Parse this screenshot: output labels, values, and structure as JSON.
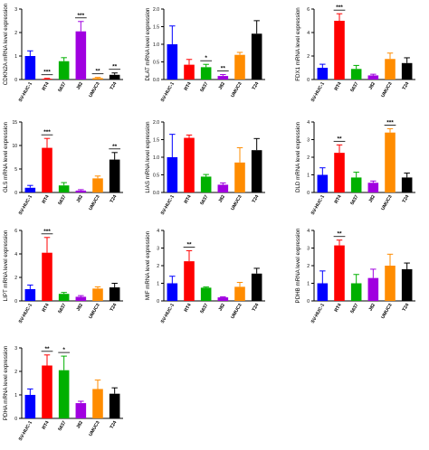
{
  "chart_data": [
    {
      "type": "bar",
      "ylabel": "CDKN2A mRNA level expression",
      "categories": [
        "SV-HUC-1",
        "RT4",
        "5637",
        "J82",
        "UMUC3",
        "T24"
      ],
      "colors": [
        "#0000ff",
        "#ff0000",
        "#00b000",
        "#a000e0",
        "#ff8c00",
        "#000000"
      ],
      "ylim": [
        0,
        3
      ],
      "yticks": [
        "0",
        "1",
        "2",
        "3"
      ],
      "values": [
        1.0,
        0.03,
        0.78,
        2.05,
        0.06,
        0.2
      ],
      "errors": [
        0.22,
        0.02,
        0.15,
        0.42,
        0.03,
        0.08
      ],
      "significance": [
        "",
        "***",
        "",
        "***",
        "**",
        "**"
      ]
    },
    {
      "type": "bar",
      "ylabel": "DLAT mRNA level expression",
      "categories": [
        "SV-HUC-1",
        "RT4",
        "5637",
        "J82",
        "UMUC3",
        "T24"
      ],
      "colors": [
        "#0000ff",
        "#ff0000",
        "#00b000",
        "#a000e0",
        "#ff8c00",
        "#000000"
      ],
      "ylim": [
        0,
        2.0
      ],
      "yticks": [
        "0.0",
        "0.5",
        "1.0",
        "1.5",
        "2.0"
      ],
      "values": [
        1.0,
        0.42,
        0.35,
        0.1,
        0.7,
        1.3
      ],
      "errors": [
        0.52,
        0.15,
        0.08,
        0.04,
        0.07,
        0.37
      ],
      "significance": [
        "",
        "",
        "*",
        "**",
        "",
        ""
      ]
    },
    {
      "type": "bar",
      "ylabel": "FDX1 mRNA level expression",
      "categories": [
        "SV-HUC-1",
        "RT4",
        "5637",
        "J82",
        "UMUC3",
        "T24"
      ],
      "colors": [
        "#0000ff",
        "#ff0000",
        "#00b000",
        "#a000e0",
        "#ff8c00",
        "#000000"
      ],
      "ylim": [
        0,
        6
      ],
      "yticks": [
        "0",
        "2",
        "4",
        "6"
      ],
      "values": [
        1.0,
        5.0,
        0.9,
        0.35,
        1.75,
        1.4
      ],
      "errors": [
        0.3,
        0.6,
        0.3,
        0.1,
        0.5,
        0.45
      ],
      "significance": [
        "",
        "***",
        "",
        "",
        "",
        ""
      ]
    },
    {
      "type": "bar",
      "ylabel": "GLS mRNA level expression",
      "categories": [
        "SV-HUC-1",
        "RT4",
        "5637",
        "J82",
        "UMUC3",
        "T24"
      ],
      "colors": [
        "#0000ff",
        "#ff0000",
        "#00b000",
        "#a000e0",
        "#ff8c00",
        "#000000"
      ],
      "ylim": [
        0,
        15
      ],
      "yticks": [
        "0",
        "5",
        "10",
        "15"
      ],
      "values": [
        1.0,
        9.5,
        1.5,
        0.4,
        3.0,
        7.0
      ],
      "errors": [
        0.5,
        2.0,
        0.6,
        0.2,
        0.5,
        1.5
      ],
      "significance": [
        "",
        "***",
        "",
        "",
        "",
        "**"
      ]
    },
    {
      "type": "bar",
      "ylabel": "LIAS mRNA level expression",
      "categories": [
        "SV-HUC-1",
        "RT4",
        "5637",
        "J82",
        "UMUC3",
        "T24"
      ],
      "colors": [
        "#0000ff",
        "#ff0000",
        "#00b000",
        "#a000e0",
        "#ff8c00",
        "#000000"
      ],
      "ylim": [
        0,
        2.0
      ],
      "yticks": [
        "0.0",
        "0.5",
        "1.0",
        "1.5",
        "2.0"
      ],
      "values": [
        1.0,
        1.55,
        0.45,
        0.22,
        0.85,
        1.2
      ],
      "errors": [
        0.65,
        0.08,
        0.06,
        0.05,
        0.42,
        0.33
      ],
      "significance": [
        "",
        "",
        "",
        "",
        "",
        ""
      ]
    },
    {
      "type": "bar",
      "ylabel": "DLD mRNA level expression",
      "categories": [
        "SV-HUC-1",
        "RT4",
        "5637",
        "J82",
        "UMUC3",
        "T24"
      ],
      "colors": [
        "#0000ff",
        "#ff0000",
        "#00b000",
        "#a000e0",
        "#ff8c00",
        "#000000"
      ],
      "ylim": [
        0,
        4
      ],
      "yticks": [
        "0",
        "1",
        "2",
        "3",
        "4"
      ],
      "values": [
        1.0,
        2.25,
        0.85,
        0.55,
        3.4,
        0.85
      ],
      "errors": [
        0.4,
        0.45,
        0.3,
        0.1,
        0.22,
        0.25
      ],
      "significance": [
        "",
        "**",
        "",
        "",
        "***",
        ""
      ]
    },
    {
      "type": "bar",
      "ylabel": "LIPT mRNA level expression",
      "categories": [
        "SV-HUC-1",
        "RT4",
        "5637",
        "J82",
        "UMUC3",
        "T24"
      ],
      "colors": [
        "#0000ff",
        "#ff0000",
        "#00b000",
        "#a000e0",
        "#ff8c00",
        "#000000"
      ],
      "ylim": [
        0,
        6
      ],
      "yticks": [
        "0",
        "2",
        "4",
        "6"
      ],
      "values": [
        1.0,
        4.1,
        0.6,
        0.35,
        1.05,
        1.15
      ],
      "errors": [
        0.35,
        1.3,
        0.12,
        0.1,
        0.15,
        0.35
      ],
      "significance": [
        "",
        "***",
        "",
        "",
        "",
        ""
      ]
    },
    {
      "type": "bar",
      "ylabel": "MIF mRNA level expression",
      "categories": [
        "SV-HUC-1",
        "RT4",
        "5637",
        "J82",
        "UMUC3",
        "T24"
      ],
      "colors": [
        "#0000ff",
        "#ff0000",
        "#00b000",
        "#a000e0",
        "#ff8c00",
        "#000000"
      ],
      "ylim": [
        0,
        4
      ],
      "yticks": [
        "0",
        "1",
        "2",
        "3",
        "4"
      ],
      "values": [
        1.0,
        2.25,
        0.75,
        0.2,
        0.8,
        1.55
      ],
      "errors": [
        0.4,
        0.6,
        0.04,
        0.03,
        0.25,
        0.3
      ],
      "significance": [
        "",
        "**",
        "",
        "",
        "",
        ""
      ]
    },
    {
      "type": "bar",
      "ylabel": "PDHB mRNA level expression",
      "categories": [
        "SV-HUC-1",
        "RT4",
        "5637",
        "J82",
        "UMUC3",
        "T24"
      ],
      "colors": [
        "#0000ff",
        "#ff0000",
        "#00b000",
        "#a000e0",
        "#ff8c00",
        "#000000"
      ],
      "ylim": [
        0,
        4
      ],
      "yticks": [
        "0",
        "1",
        "2",
        "3",
        "4"
      ],
      "values": [
        1.0,
        3.15,
        1.0,
        1.3,
        2.0,
        1.8
      ],
      "errors": [
        0.7,
        0.3,
        0.5,
        0.5,
        0.65,
        0.35
      ],
      "significance": [
        "",
        "**",
        "",
        "",
        "",
        ""
      ]
    },
    {
      "type": "bar",
      "ylabel": "PDHA mRNA level expression",
      "categories": [
        "SV-HUC-1",
        "RT4",
        "5637",
        "J82",
        "UMUC3",
        "T24"
      ],
      "colors": [
        "#0000ff",
        "#ff0000",
        "#00b000",
        "#a000e0",
        "#ff8c00",
        "#000000"
      ],
      "ylim": [
        0,
        3
      ],
      "yticks": [
        "0",
        "1",
        "2",
        "3"
      ],
      "values": [
        1.0,
        2.25,
        2.05,
        0.65,
        1.25,
        1.05
      ],
      "errors": [
        0.25,
        0.45,
        0.6,
        0.08,
        0.38,
        0.25
      ],
      "significance": [
        "",
        "**",
        "*",
        "",
        "",
        ""
      ]
    }
  ]
}
